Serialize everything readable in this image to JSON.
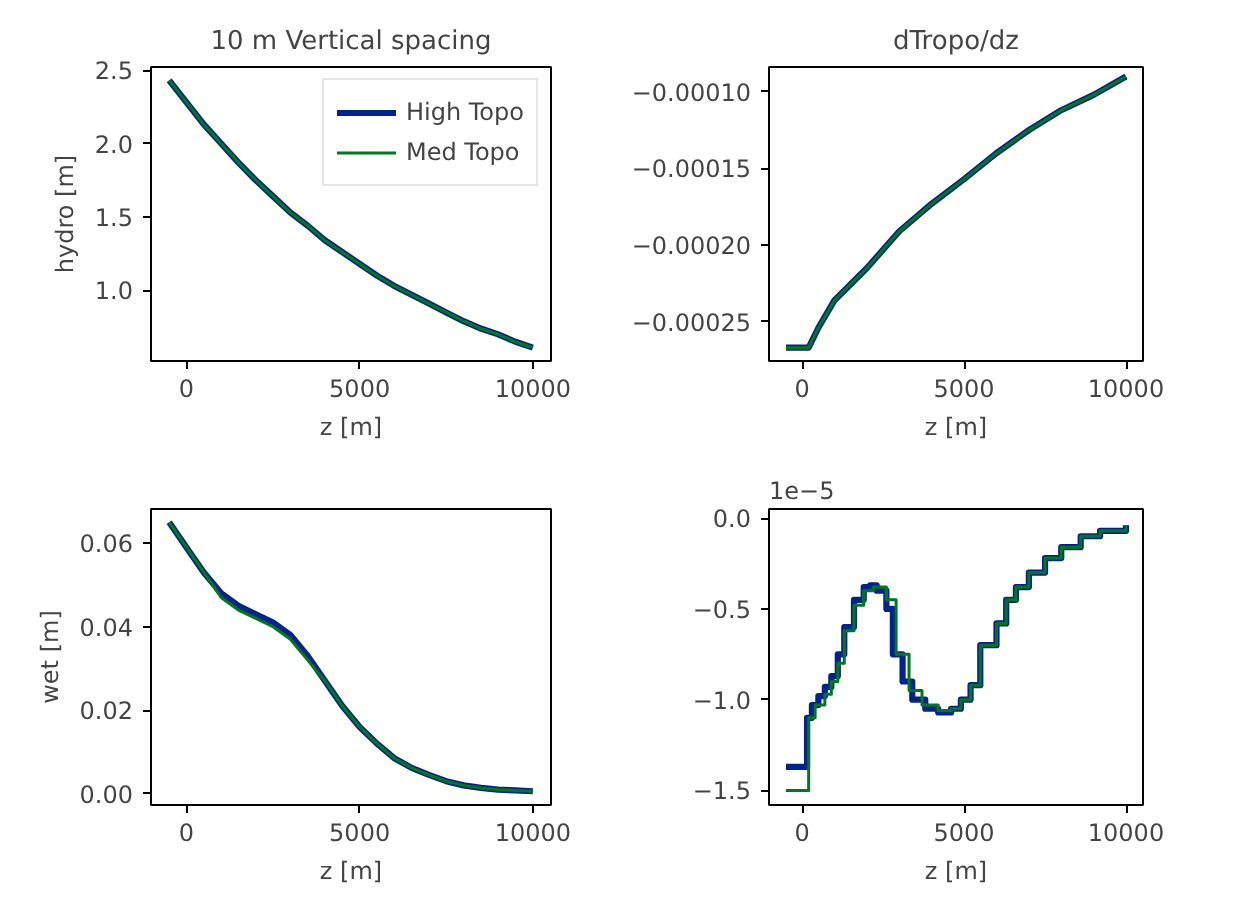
{
  "chart_data": [
    {
      "type": "line",
      "title": "10 m Vertical spacing",
      "xlabel": "z [m]",
      "ylabel": "hydro [m]",
      "legend": "top right",
      "grid": false,
      "xlim": [
        -1025,
        10525
      ],
      "ylim": [
        0.519,
        2.521
      ],
      "xticks": [
        0,
        5000,
        10000
      ],
      "yticks": [
        {
          "value": 1.0,
          "label": "1.0"
        },
        {
          "value": 1.5,
          "label": "1.5"
        },
        {
          "value": 2.0,
          "label": "2.0"
        },
        {
          "value": 2.5,
          "label": "2.5"
        }
      ],
      "series": [
        {
          "name": "High Topo",
          "color": "#00238c",
          "x": [
            -500,
            0,
            500,
            1000,
            1500,
            2000,
            2500,
            3000,
            3500,
            4000,
            4500,
            5000,
            5500,
            6000,
            6500,
            7000,
            7500,
            8000,
            8500,
            9000,
            9500,
            10000
          ],
          "values": [
            2.43,
            2.28,
            2.13,
            2.0,
            1.87,
            1.75,
            1.64,
            1.53,
            1.44,
            1.34,
            1.26,
            1.18,
            1.1,
            1.03,
            0.97,
            0.91,
            0.85,
            0.79,
            0.74,
            0.7,
            0.65,
            0.61
          ]
        },
        {
          "name": "Med Topo",
          "color": "#00781e",
          "x": [
            -500,
            0,
            500,
            1000,
            1500,
            2000,
            2500,
            3000,
            3500,
            4000,
            4500,
            5000,
            5500,
            6000,
            6500,
            7000,
            7500,
            8000,
            8500,
            9000,
            9500,
            10000
          ],
          "values": [
            2.43,
            2.28,
            2.13,
            2.0,
            1.87,
            1.75,
            1.64,
            1.53,
            1.44,
            1.34,
            1.26,
            1.18,
            1.1,
            1.03,
            0.97,
            0.91,
            0.85,
            0.79,
            0.74,
            0.7,
            0.65,
            0.61
          ]
        }
      ]
    },
    {
      "type": "line",
      "title": "dTropo/dz",
      "xlabel": "z [m]",
      "grid": false,
      "xlim": [
        -1025,
        10525
      ],
      "ylim": [
        -0.0002757,
        -8.38e-05
      ],
      "xticks": [
        0,
        5000,
        10000
      ],
      "yticks": [
        {
          "value": -0.00025,
          "label": "−0.00025"
        },
        {
          "value": -0.0002,
          "label": "−0.00020"
        },
        {
          "value": -0.00015,
          "label": "−0.00015"
        },
        {
          "value": -0.0001,
          "label": "−0.00010"
        }
      ],
      "series": [
        {
          "color": "#00238c",
          "x": [
            -500,
            0,
            200,
            500,
            1000,
            2000,
            3000,
            4000,
            5000,
            6000,
            7000,
            8000,
            9000,
            10000
          ],
          "values": [
            -0.000267,
            -0.000267,
            -0.000267,
            -0.000254,
            -0.000236,
            -0.000215,
            -0.000191,
            -0.000173,
            -0.000157,
            -0.00014,
            -0.000125,
            -0.000112,
            -0.000102,
            -9e-05
          ]
        },
        {
          "color": "#00781e",
          "x": [
            -500,
            0,
            200,
            500,
            1000,
            2000,
            3000,
            4000,
            5000,
            6000,
            7000,
            8000,
            9000,
            10000
          ],
          "values": [
            -0.000267,
            -0.000267,
            -0.000267,
            -0.000254,
            -0.000236,
            -0.000215,
            -0.000191,
            -0.000173,
            -0.000157,
            -0.00014,
            -0.000125,
            -0.000112,
            -0.000102,
            -9e-05
          ]
        }
      ]
    },
    {
      "type": "line",
      "xlabel": "z [m]",
      "ylabel": "wet [m]",
      "grid": false,
      "xlim": [
        -1025,
        10525
      ],
      "ylim": [
        -0.0027,
        0.0682
      ],
      "xticks": [
        0,
        5000,
        10000
      ],
      "yticks": [
        {
          "value": 0,
          "label": "0.00"
        },
        {
          "value": 0.02,
          "label": "0.02"
        },
        {
          "value": 0.04,
          "label": "0.04"
        },
        {
          "value": 0.06,
          "label": "0.06"
        }
      ],
      "series": [
        {
          "color": "#00238c",
          "x": [
            -500,
            0,
            500,
            1000,
            1500,
            2000,
            2500,
            3000,
            3500,
            4000,
            4500,
            5000,
            5500,
            6000,
            6500,
            7000,
            7500,
            8000,
            8500,
            9000,
            9500,
            10000
          ],
          "values": [
            0.065,
            0.059,
            0.053,
            0.048,
            0.045,
            0.043,
            0.041,
            0.038,
            0.033,
            0.027,
            0.021,
            0.016,
            0.012,
            0.0085,
            0.0062,
            0.0045,
            0.003,
            0.002,
            0.0014,
            0.001,
            0.0008,
            0.0006
          ]
        },
        {
          "color": "#00781e",
          "x": [
            -500,
            0,
            500,
            1000,
            1500,
            2000,
            2500,
            3000,
            3500,
            4000,
            4500,
            5000,
            5500,
            6000,
            6500,
            7000,
            7500,
            8000,
            8500,
            9000,
            9500,
            10000
          ],
          "values": [
            0.065,
            0.059,
            0.053,
            0.047,
            0.044,
            0.042,
            0.04,
            0.037,
            0.032,
            0.027,
            0.021,
            0.016,
            0.012,
            0.0085,
            0.0062,
            0.0045,
            0.003,
            0.002,
            0.0014,
            0.001,
            0.0008,
            0.0006
          ]
        }
      ]
    },
    {
      "type": "step",
      "xlabel": "z [m]",
      "annotations": [
        "1e−5"
      ],
      "grid": false,
      "xlim": [
        -1025,
        10525
      ],
      "ylim": [
        -1.58,
        0.05
      ],
      "xticks": [
        0,
        5000,
        10000
      ],
      "yticks": [
        {
          "value": -1.5,
          "label": "−1.5"
        },
        {
          "value": -1.0,
          "label": "−1.0"
        },
        {
          "value": -0.5,
          "label": "−0.5"
        },
        {
          "value": 0.0,
          "label": "0.0"
        }
      ],
      "series": [
        {
          "color": "#00238c",
          "x": [
            -500,
            150,
            300,
            500,
            700,
            900,
            1100,
            1300,
            1600,
            1900,
            2100,
            2300,
            2600,
            2800,
            3100,
            3400,
            3800,
            4200,
            4600,
            4900,
            5200,
            5500,
            6000,
            6300,
            6600,
            7000,
            7500,
            8000,
            8600,
            9200,
            10000
          ],
          "values": [
            -1.37,
            -1.1,
            -1.03,
            -0.98,
            -0.93,
            -0.87,
            -0.75,
            -0.6,
            -0.45,
            -0.38,
            -0.37,
            -0.4,
            -0.5,
            -0.75,
            -0.9,
            -1.0,
            -1.05,
            -1.07,
            -1.05,
            -1.0,
            -0.92,
            -0.7,
            -0.58,
            -0.45,
            -0.38,
            -0.3,
            -0.22,
            -0.16,
            -0.1,
            -0.07,
            -0.04
          ]
        },
        {
          "color": "#00781e",
          "x": [
            -500,
            200,
            400,
            700,
            900,
            1100,
            1300,
            1600,
            1900,
            2200,
            2600,
            2900,
            3300,
            3700,
            4200,
            4600,
            4900,
            5200,
            5500,
            6000,
            6300,
            6600,
            7000,
            7500,
            8000,
            8600,
            9200,
            10000
          ],
          "values": [
            -1.5,
            -1.1,
            -1.03,
            -0.97,
            -0.9,
            -0.8,
            -0.62,
            -0.48,
            -0.4,
            -0.38,
            -0.45,
            -0.75,
            -0.95,
            -1.03,
            -1.06,
            -1.05,
            -1.0,
            -0.92,
            -0.7,
            -0.58,
            -0.45,
            -0.38,
            -0.3,
            -0.22,
            -0.16,
            -0.1,
            -0.07,
            -0.04
          ]
        }
      ]
    }
  ]
}
